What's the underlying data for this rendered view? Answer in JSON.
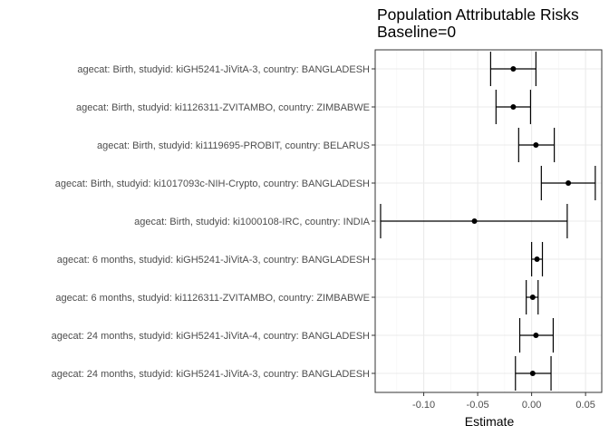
{
  "chart_data": {
    "type": "scatter",
    "variant": "forest-plot",
    "title": "Population Attributable Risks",
    "subtitle": "Baseline=0",
    "xlabel": "Estimate",
    "ylabel": "",
    "xlim": [
      -0.145,
      0.065
    ],
    "xticks": [
      -0.1,
      -0.05,
      0.0,
      0.05
    ],
    "xtick_labels": [
      "-0.10",
      "-0.05",
      "0.00",
      "0.05"
    ],
    "grid": true,
    "legend": "none",
    "colors": {
      "point": "#000000",
      "errorbar": "#000000",
      "grid_major": "#ebebeb",
      "grid_minor": "#f4f4f4",
      "panel_border": "#333333",
      "tick_label": "#4d4d4d"
    },
    "rows": [
      {
        "label": "agecat: Birth, studyid: kiGH5241-JiVitA-3, country: BANGLADESH",
        "estimate": -0.017,
        "lower": -0.038,
        "upper": 0.004
      },
      {
        "label": "agecat: Birth, studyid: ki1126311-ZVITAMBO, country: ZIMBABWE",
        "estimate": -0.017,
        "lower": -0.033,
        "upper": -0.001
      },
      {
        "label": "agecat: Birth, studyid: ki1119695-PROBIT, country: BELARUS",
        "estimate": 0.004,
        "lower": -0.012,
        "upper": 0.021
      },
      {
        "label": "agecat: Birth, studyid: ki1017093c-NIH-Crypto, country: BANGLADESH",
        "estimate": 0.034,
        "lower": 0.009,
        "upper": 0.059
      },
      {
        "label": "agecat: Birth, studyid: ki1000108-IRC, country: INDIA",
        "estimate": -0.053,
        "lower": -0.14,
        "upper": 0.033
      },
      {
        "label": "agecat: 6 months, studyid: kiGH5241-JiVitA-3, country: BANGLADESH",
        "estimate": 0.005,
        "lower": 0.0,
        "upper": 0.01
      },
      {
        "label": "agecat: 6 months, studyid: ki1126311-ZVITAMBO, country: ZIMBABWE",
        "estimate": 0.001,
        "lower": -0.005,
        "upper": 0.006
      },
      {
        "label": "agecat: 24 months, studyid: kiGH5241-JiVitA-4, country: BANGLADESH",
        "estimate": 0.004,
        "lower": -0.011,
        "upper": 0.02
      },
      {
        "label": "agecat: 24 months, studyid: kiGH5241-JiVitA-3, country: BANGLADESH",
        "estimate": 0.001,
        "lower": -0.015,
        "upper": 0.018
      }
    ]
  }
}
